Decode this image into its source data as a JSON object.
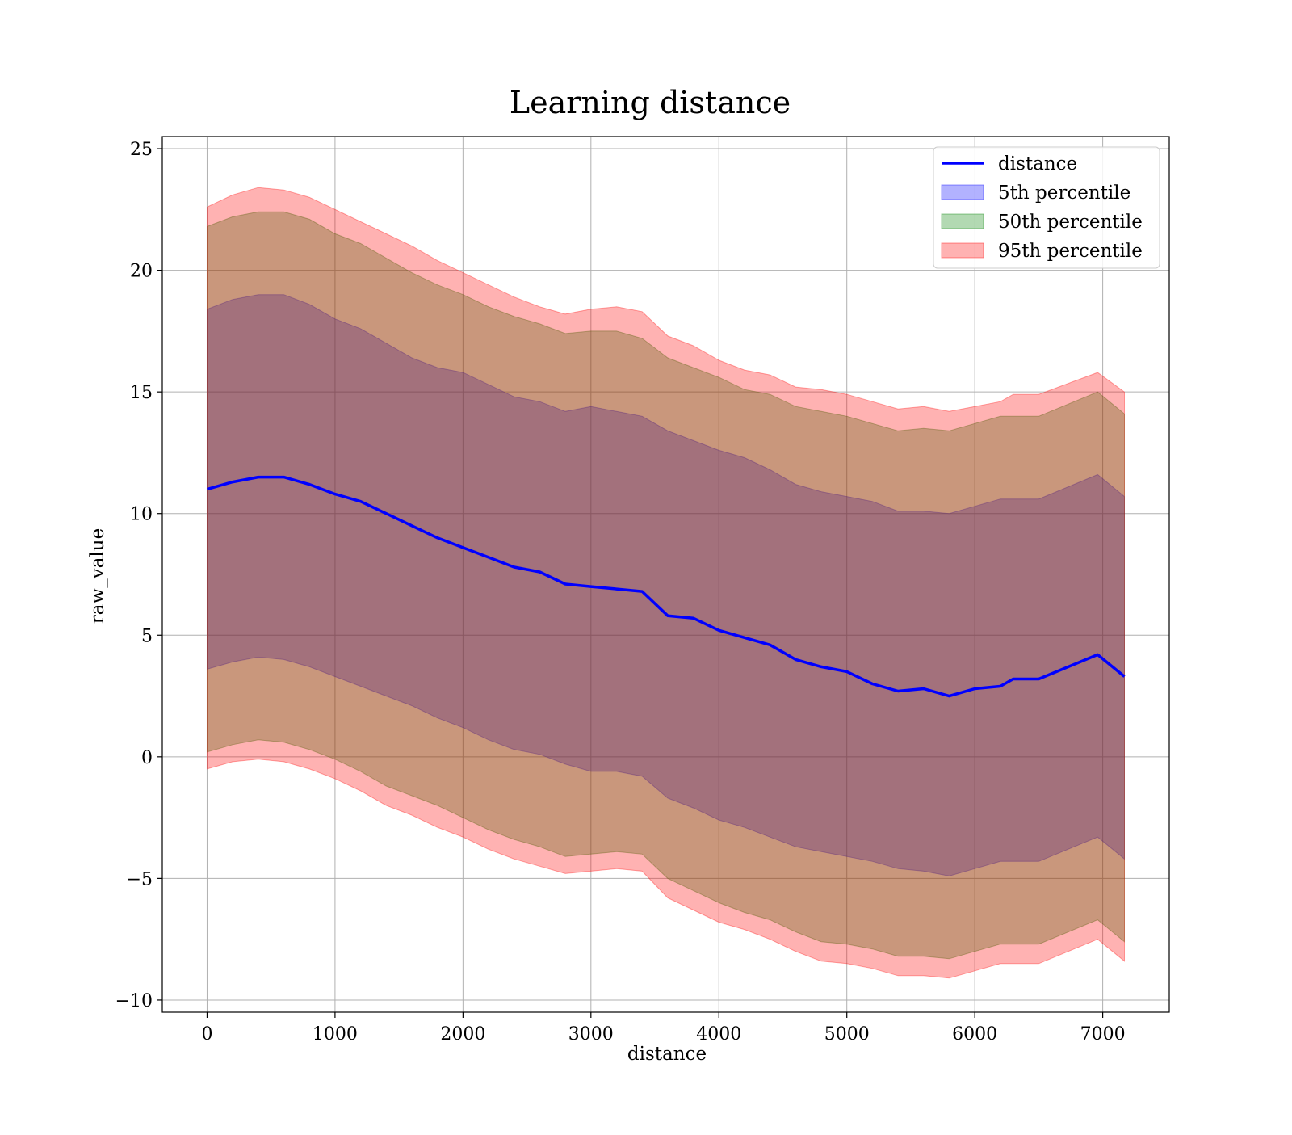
{
  "chart_data": {
    "type": "line",
    "title": "Learning distance",
    "xlabel": "distance",
    "ylabel": "raw_value",
    "xlim": [
      -350,
      7520
    ],
    "ylim": [
      -10.5,
      25.5
    ],
    "xticks": [
      0,
      1000,
      2000,
      3000,
      4000,
      5000,
      6000,
      7000
    ],
    "yticks": [
      -10,
      -5,
      0,
      5,
      10,
      15,
      20,
      25
    ],
    "xtick_labels": [
      "0",
      "1000",
      "2000",
      "3000",
      "4000",
      "5000",
      "6000",
      "7000"
    ],
    "ytick_labels": [
      "−10",
      "−5",
      "0",
      "5",
      "10",
      "15",
      "20",
      "25"
    ],
    "grid": true,
    "legend_position": "top-right",
    "x": [
      0,
      200,
      400,
      600,
      800,
      1000,
      1200,
      1400,
      1600,
      1800,
      2000,
      2200,
      2400,
      2600,
      2800,
      3000,
      3200,
      3400,
      3600,
      3800,
      4000,
      4200,
      4400,
      4600,
      4800,
      5000,
      5200,
      5400,
      5600,
      5800,
      6000,
      6200,
      6300,
      6500,
      6960,
      7170
    ],
    "series": [
      {
        "name": "distance",
        "kind": "line",
        "color": "#0000ff",
        "values": [
          11.0,
          11.3,
          11.5,
          11.5,
          11.2,
          10.8,
          10.5,
          10.0,
          9.5,
          9.0,
          8.6,
          8.2,
          7.8,
          7.6,
          7.1,
          7.0,
          6.9,
          6.8,
          5.8,
          5.7,
          5.2,
          4.9,
          4.6,
          4.0,
          3.7,
          3.5,
          3.0,
          2.7,
          2.8,
          2.5,
          2.8,
          2.9,
          3.2,
          3.2,
          4.2,
          3.3
        ]
      },
      {
        "name": "5th percentile",
        "kind": "band",
        "color": "#0000ff",
        "alpha": 0.3,
        "upper": [
          18.4,
          18.8,
          19.0,
          19.0,
          18.6,
          18.0,
          17.6,
          17.0,
          16.4,
          16.0,
          15.8,
          15.3,
          14.8,
          14.6,
          14.2,
          14.4,
          14.2,
          14.0,
          13.4,
          13.0,
          12.6,
          12.3,
          11.8,
          11.2,
          10.9,
          10.7,
          10.5,
          10.1,
          10.1,
          10.0,
          10.3,
          10.6,
          10.6,
          10.6,
          11.6,
          10.7
        ],
        "lower": [
          3.6,
          3.9,
          4.1,
          4.0,
          3.7,
          3.3,
          2.9,
          2.5,
          2.1,
          1.6,
          1.2,
          0.7,
          0.3,
          0.1,
          -0.3,
          -0.6,
          -0.6,
          -0.8,
          -1.7,
          -2.1,
          -2.6,
          -2.9,
          -3.3,
          -3.7,
          -3.9,
          -4.1,
          -4.3,
          -4.6,
          -4.7,
          -4.9,
          -4.6,
          -4.3,
          -4.3,
          -4.3,
          -3.3,
          -4.2
        ]
      },
      {
        "name": "50th percentile",
        "kind": "band",
        "color": "#008000",
        "alpha": 0.3,
        "upper": [
          21.8,
          22.2,
          22.4,
          22.4,
          22.1,
          21.5,
          21.1,
          20.5,
          19.9,
          19.4,
          19.0,
          18.5,
          18.1,
          17.8,
          17.4,
          17.5,
          17.5,
          17.2,
          16.4,
          16.0,
          15.6,
          15.1,
          14.9,
          14.4,
          14.2,
          14.0,
          13.7,
          13.4,
          13.5,
          13.4,
          13.7,
          14.0,
          14.0,
          14.0,
          15.0,
          14.1
        ],
        "lower": [
          0.2,
          0.5,
          0.7,
          0.6,
          0.3,
          -0.1,
          -0.6,
          -1.2,
          -1.6,
          -2.0,
          -2.5,
          -3.0,
          -3.4,
          -3.7,
          -4.1,
          -4.0,
          -3.9,
          -4.0,
          -5.0,
          -5.5,
          -6.0,
          -6.4,
          -6.7,
          -7.2,
          -7.6,
          -7.7,
          -7.9,
          -8.2,
          -8.2,
          -8.3,
          -8.0,
          -7.7,
          -7.7,
          -7.7,
          -6.7,
          -7.6
        ]
      },
      {
        "name": "95th percentile",
        "kind": "band",
        "color": "#ff0000",
        "alpha": 0.3,
        "upper": [
          22.6,
          23.1,
          23.4,
          23.3,
          23.0,
          22.5,
          22.0,
          21.5,
          21.0,
          20.4,
          19.9,
          19.4,
          18.9,
          18.5,
          18.2,
          18.4,
          18.5,
          18.3,
          17.3,
          16.9,
          16.3,
          15.9,
          15.7,
          15.2,
          15.1,
          14.9,
          14.6,
          14.3,
          14.4,
          14.2,
          14.4,
          14.6,
          14.9,
          14.9,
          15.8,
          15.0
        ],
        "lower": [
          -0.5,
          -0.2,
          -0.1,
          -0.2,
          -0.5,
          -0.9,
          -1.4,
          -2.0,
          -2.4,
          -2.9,
          -3.3,
          -3.8,
          -4.2,
          -4.5,
          -4.8,
          -4.7,
          -4.6,
          -4.7,
          -5.8,
          -6.3,
          -6.8,
          -7.1,
          -7.5,
          -8.0,
          -8.4,
          -8.5,
          -8.7,
          -9.0,
          -9.0,
          -9.1,
          -8.8,
          -8.5,
          -8.5,
          -8.5,
          -7.5,
          -8.4
        ]
      }
    ]
  }
}
